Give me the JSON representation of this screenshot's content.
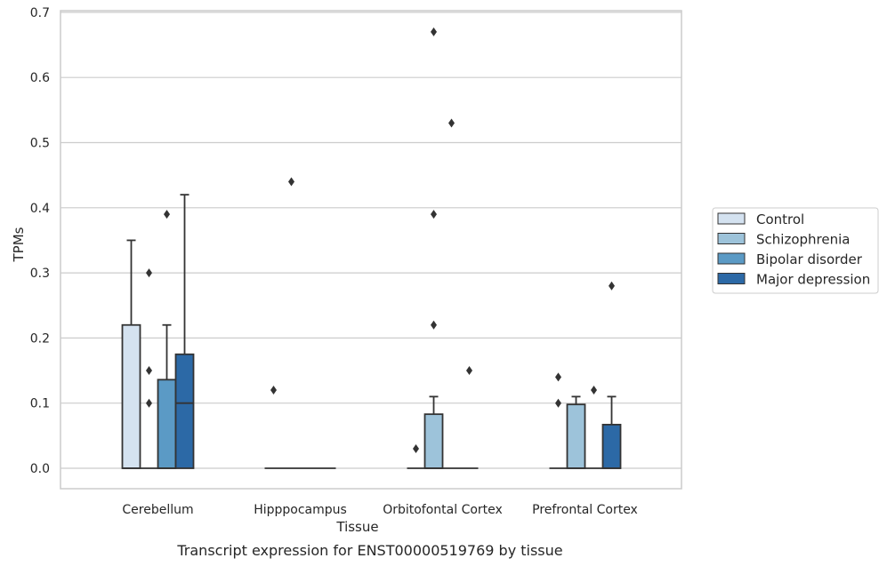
{
  "chart_data": {
    "type": "box",
    "caption": "Transcript expression for ENST00000519769 by tissue",
    "xlabel": "Tissue",
    "ylabel": "TPMs",
    "ylim": [
      -0.03,
      0.705
    ],
    "yticks": [
      "0.0",
      "0.1",
      "0.2",
      "0.3",
      "0.4",
      "0.5",
      "0.6",
      "0.7"
    ],
    "grid": "horizontal",
    "legend_position": "right",
    "categories": [
      "Cerebellum",
      "Hipppocampus",
      "Orbitofontal Cortex",
      "Prefrontal Cortex"
    ],
    "series": [
      {
        "name": "Control",
        "color": "#d4e2f0",
        "boxes": [
          {
            "q1": 0.0,
            "median": 0.0,
            "q3": 0.22,
            "whisker_low": 0.0,
            "whisker_high": 0.35,
            "outliers": []
          },
          {
            "q1": 0.0,
            "median": 0.0,
            "q3": 0.0,
            "whisker_low": 0.0,
            "whisker_high": 0.0,
            "outliers": [
              0.12
            ]
          },
          {
            "q1": 0.0,
            "median": 0.0,
            "q3": 0.0,
            "whisker_low": 0.0,
            "whisker_high": 0.0,
            "outliers": [
              0.03
            ]
          },
          {
            "q1": 0.0,
            "median": 0.0,
            "q3": 0.0,
            "whisker_low": 0.0,
            "whisker_high": 0.0,
            "outliers": [
              0.1,
              0.14
            ]
          }
        ]
      },
      {
        "name": "Schizophrenia",
        "color": "#9dc3da",
        "boxes": [
          {
            "q1": 0.0,
            "median": 0.0,
            "q3": 0.0,
            "whisker_low": 0.0,
            "whisker_high": 0.0,
            "outliers": [
              0.1,
              0.15,
              0.3
            ]
          },
          {
            "q1": 0.0,
            "median": 0.0,
            "q3": 0.0,
            "whisker_low": 0.0,
            "whisker_high": 0.0,
            "outliers": [
              0.44
            ]
          },
          {
            "q1": 0.0,
            "median": 0.0,
            "q3": 0.083,
            "whisker_low": 0.0,
            "whisker_high": 0.11,
            "outliers": [
              0.22,
              0.39,
              0.67
            ]
          },
          {
            "q1": 0.0,
            "median": 0.0,
            "q3": 0.098,
            "whisker_low": 0.0,
            "whisker_high": 0.11,
            "outliers": []
          }
        ]
      },
      {
        "name": "Bipolar disorder",
        "color": "#5b9ac5",
        "boxes": [
          {
            "q1": 0.0,
            "median": 0.0,
            "q3": 0.136,
            "whisker_low": 0.0,
            "whisker_high": 0.22,
            "outliers": [
              0.39
            ]
          },
          {
            "q1": 0.0,
            "median": 0.0,
            "q3": 0.0,
            "whisker_low": 0.0,
            "whisker_high": 0.0,
            "outliers": []
          },
          {
            "q1": 0.0,
            "median": 0.0,
            "q3": 0.0,
            "whisker_low": 0.0,
            "whisker_high": 0.0,
            "outliers": [
              0.53
            ]
          },
          {
            "q1": 0.0,
            "median": 0.0,
            "q3": 0.0,
            "whisker_low": 0.0,
            "whisker_high": 0.0,
            "outliers": [
              0.12
            ]
          }
        ]
      },
      {
        "name": "Major depression",
        "color": "#2c69a6",
        "boxes": [
          {
            "q1": 0.0,
            "median": 0.1,
            "q3": 0.175,
            "whisker_low": 0.0,
            "whisker_high": 0.42,
            "outliers": []
          },
          {
            "q1": 0.0,
            "median": 0.0,
            "q3": 0.0,
            "whisker_low": 0.0,
            "whisker_high": 0.0,
            "outliers": []
          },
          {
            "q1": 0.0,
            "median": 0.0,
            "q3": 0.0,
            "whisker_low": 0.0,
            "whisker_high": 0.0,
            "outliers": [
              0.15
            ]
          },
          {
            "q1": 0.0,
            "median": 0.0,
            "q3": 0.067,
            "whisker_low": 0.0,
            "whisker_high": 0.11,
            "outliers": [
              0.28
            ]
          }
        ]
      }
    ]
  }
}
